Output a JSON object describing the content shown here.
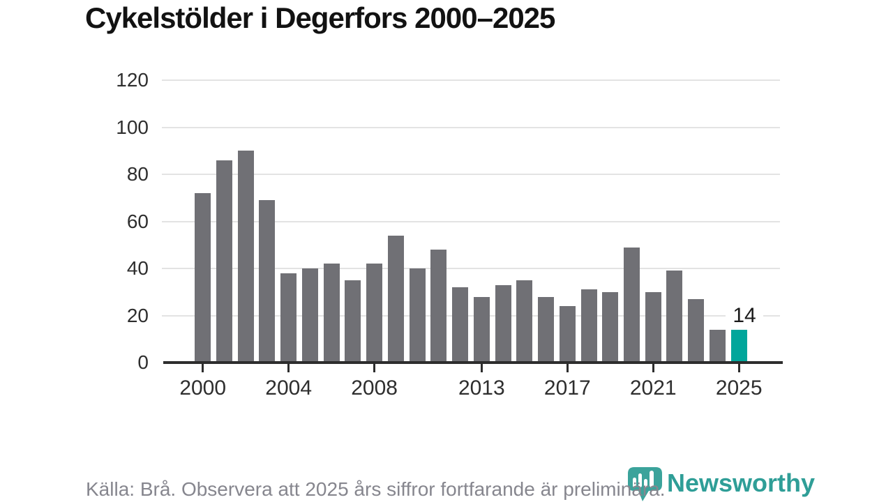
{
  "title": "Cykelstölder i Degerfors 2000–2025",
  "footer": {
    "source_note": "Källa: Brå. Observera att 2025 års siffror fortfarande är preliminära."
  },
  "branding": {
    "logo_icon": "newsworthy-pin-barchart-icon",
    "wordmark": "Newsworthy",
    "icon_color": "#3ba39b",
    "wordmark_color": "#2f9e97"
  },
  "colors": {
    "bar": "#707075",
    "highlight": "#00a69b",
    "grid": "#e3e3e3",
    "axis": "#2d2d2d",
    "tick_label": "#2e2e2e",
    "title_text": "#121212",
    "footer_text": "#86868e"
  },
  "chart_data": {
    "type": "bar",
    "title": "Cykelstölder i Degerfors 2000–2025",
    "categories": [
      2000,
      2001,
      2002,
      2003,
      2004,
      2005,
      2006,
      2007,
      2008,
      2009,
      2010,
      2011,
      2012,
      2013,
      2014,
      2015,
      2016,
      2017,
      2018,
      2019,
      2020,
      2021,
      2022,
      2023,
      2024,
      2025
    ],
    "values": [
      72,
      86,
      90,
      69,
      38,
      40,
      42,
      35,
      42,
      54,
      40,
      48,
      32,
      28,
      33,
      35,
      28,
      24,
      31,
      30,
      49,
      30,
      39,
      27,
      14,
      14
    ],
    "highlight_index": 25,
    "x_tick_years": [
      2000,
      2004,
      2008,
      2013,
      2017,
      2021,
      2025
    ],
    "y_ticks": [
      0,
      20,
      40,
      60,
      80,
      100,
      120
    ],
    "ylim": [
      0,
      120
    ],
    "grid": "horizontal",
    "legend": "none",
    "annotation": {
      "year": 2025,
      "label": "14"
    }
  }
}
